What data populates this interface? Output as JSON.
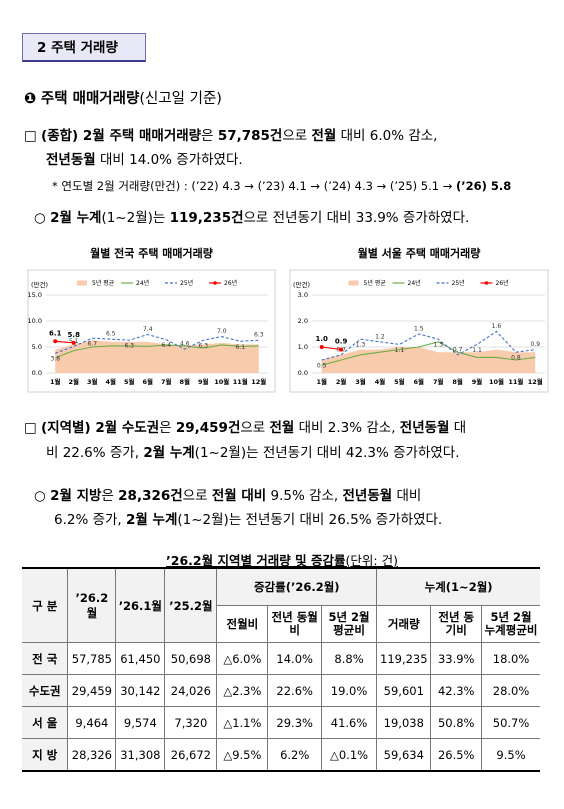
{
  "section_title": "2 주택 거래량",
  "heading": {
    "bullet": "❶",
    "title": "주택 매매거래량",
    "note": "(신고일 기준)"
  },
  "p1": [
    [
      "□ ",
      "(종합) 2월 주택 매매거래량",
      "은 ",
      "57,785건",
      "으로 ",
      "전월",
      " 대비 6.0% 감소,"
    ],
    [
      "전년동월",
      " 대비 14.0% 증가하였다."
    ]
  ],
  "note": [
    [
      "* ",
      "연도별 2월 거래량(만건) : (’22) 4.3 → (’23) 4.1 → (’24) 4.3 → (’25) 5.1 → ",
      "(’26) 5.8"
    ]
  ],
  "p2": [
    [
      "○ ",
      "2월 누계",
      "(1~2월)는 ",
      "119,235건",
      "으로 전년동기 대비 33.9% 증가하였다."
    ]
  ],
  "p3": [
    [
      "□ ",
      "(지역별) 2월 수도권",
      "은 ",
      "29,459건",
      "으로 ",
      "전월",
      " 대비 2.3% 감소, ",
      "전년동월",
      " 대"
    ],
    [
      "비 22.6% 증가, ",
      "2월 누계",
      "(1~2월)는 전년동기 대비 42.3% 증가하였다."
    ]
  ],
  "p4": [
    [
      "○ ",
      "2월 지방",
      "은 ",
      "28,326건",
      "으로 ",
      "전월 대비",
      " 9.5% 감소, ",
      "전년동월",
      " 대비"
    ],
    [
      "6.2% 증가, ",
      "2월 누계",
      "(1~2월)는 전년동기 대비 26.5% 증가하였다."
    ]
  ],
  "chart_data": [
    {
      "type": "line",
      "title": "월별 전국 주택 매매거래량",
      "y_label": "(만건)",
      "categories": [
        "1월",
        "2월",
        "3월",
        "4월",
        "5월",
        "6월",
        "7월",
        "8월",
        "9월",
        "10월",
        "11월",
        "12월"
      ],
      "ylim": [
        0,
        15
      ],
      "yticks": [
        {
          "value": 0,
          "label": "0.0"
        },
        {
          "value": 5,
          "label": "5.0"
        },
        {
          "value": 10,
          "label": "10.0"
        },
        {
          "value": 15,
          "label": "15.0"
        }
      ],
      "grid": true,
      "series": [
        {
          "name": "5년 평균",
          "color": "#f8cbad",
          "fill": true,
          "values": [
            4.5,
            5.5,
            6.3,
            6.0,
            6.0,
            6.0,
            5.5,
            5.3,
            5.5,
            5.8,
            5.5,
            5.5
          ]
        },
        {
          "name": "24년",
          "color": "#70ad47",
          "values": [
            2.9,
            4.3,
            5.0,
            5.2,
            5.2,
            5.1,
            5.4,
            5.2,
            4.8,
            5.4,
            5.1,
            5.2
          ]
        },
        {
          "name": "25년",
          "color": "#4472c4",
          "dashed": true,
          "values": [
            3.8,
            5.1,
            6.7,
            6.5,
            6.3,
            7.4,
            6.4,
            4.6,
            6.3,
            7.0,
            6.1,
            6.3
          ],
          "value_labels": [
            "3.8",
            "5.1",
            "6.7",
            "6.5",
            "6.3",
            "7.4",
            "6.4",
            "4.6",
            "6.3",
            "7.0",
            "6.1",
            "6.3"
          ]
        },
        {
          "name": "26년",
          "color": "#ff0000",
          "markers": true,
          "values": [
            6.1,
            5.8,
            null,
            null,
            null,
            null,
            null,
            null,
            null,
            null,
            null,
            null
          ],
          "value_labels": [
            "6.1",
            "5.8",
            null,
            null,
            null,
            null,
            null,
            null,
            null,
            null,
            null,
            null
          ]
        }
      ]
    },
    {
      "type": "line",
      "title": "월별 서울 주택 매매거래량",
      "y_label": "(만건)",
      "categories": [
        "1월",
        "2월",
        "3월",
        "4월",
        "5월",
        "6월",
        "7월",
        "8월",
        "9월",
        "10월",
        "11월",
        "12월"
      ],
      "ylim": [
        0,
        3
      ],
      "yticks": [
        {
          "value": 0,
          "label": "0.0"
        },
        {
          "value": 1,
          "label": "1.0"
        },
        {
          "value": 2,
          "label": "2.0"
        },
        {
          "value": 3,
          "label": "3.0"
        }
      ],
      "grid": true,
      "series": [
        {
          "name": "5년 평균",
          "color": "#f8cbad",
          "fill": true,
          "values": [
            0.5,
            0.7,
            0.9,
            0.9,
            1.0,
            1.0,
            0.8,
            0.8,
            0.8,
            0.9,
            0.8,
            0.8
          ]
        },
        {
          "name": "24년",
          "color": "#70ad47",
          "values": [
            0.3,
            0.5,
            0.7,
            0.8,
            0.9,
            1.0,
            1.2,
            0.8,
            0.6,
            0.6,
            0.5,
            0.6
          ]
        },
        {
          "name": "25년",
          "color": "#4472c4",
          "dashed": true,
          "values": [
            0.5,
            0.7,
            1.3,
            1.2,
            1.1,
            1.5,
            1.3,
            0.7,
            1.1,
            1.6,
            0.8,
            0.9
          ],
          "value_labels": [
            "0.5",
            "0.7",
            "1.3",
            "1.2",
            "1.1",
            "1.5",
            "1.3",
            "0.7",
            "1.1",
            "1.6",
            "0.8",
            "0.9"
          ]
        },
        {
          "name": "26년",
          "color": "#ff0000",
          "markers": true,
          "values": [
            1.0,
            0.9,
            null,
            null,
            null,
            null,
            null,
            null,
            null,
            null,
            null,
            null
          ],
          "value_labels": [
            "1.0",
            "0.9",
            null,
            null,
            null,
            null,
            null,
            null,
            null,
            null,
            null,
            null
          ]
        }
      ]
    }
  ],
  "table": {
    "title": "’26.2월 지역별 거래량 및 증감률",
    "unit": "(단위: 건)",
    "header_top": [
      "구 분",
      "’26.2월",
      "’26.1월",
      "’25.2월",
      "증감률(’26.2월)",
      "누계(1~2월)"
    ],
    "header_sub": [
      "전월비",
      "전년 동월비",
      "5년 2월 평균비",
      "거래량",
      "전년 동기비",
      "5년 2월 누계평균비"
    ],
    "rows": [
      [
        "전 국",
        "57,785",
        "61,450",
        "50,698",
        "△6.0%",
        "14.0%",
        "8.8%",
        "119,235",
        "33.9%",
        "18.0%"
      ],
      [
        "수도권",
        "29,459",
        "30,142",
        "24,026",
        "△2.3%",
        "22.6%",
        "19.0%",
        "59,601",
        "42.3%",
        "28.0%"
      ],
      [
        "서 울",
        "9,464",
        "9,574",
        "7,320",
        "△1.1%",
        "29.3%",
        "41.6%",
        "19,038",
        "50.8%",
        "50.7%"
      ],
      [
        "지 방",
        "28,326",
        "31,308",
        "26,672",
        "△9.5%",
        "6.2%",
        "△0.1%",
        "59,634",
        "26.5%",
        "9.5%"
      ]
    ]
  }
}
